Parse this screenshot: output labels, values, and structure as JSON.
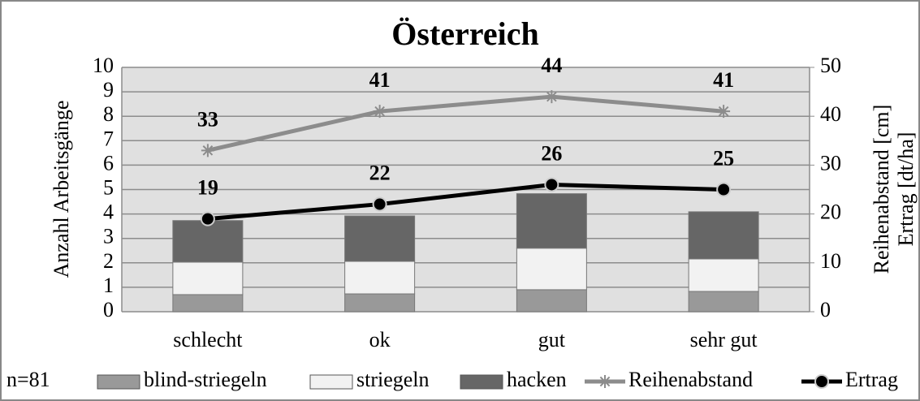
{
  "chart_data": {
    "type": "bar_line_combo",
    "title": "Österreich",
    "categories": [
      "schlecht",
      "ok",
      "gut",
      "sehr gut"
    ],
    "ylabel": "Anzahl Arbeitsgänge",
    "y2label": [
      "Reihenabstand [cm]",
      "Ertrag [dt/ha]"
    ],
    "ylim": [
      0,
      10
    ],
    "yticks": [
      0,
      1,
      2,
      3,
      4,
      5,
      6,
      7,
      8,
      9,
      10
    ],
    "y2lim": [
      0,
      50
    ],
    "y2ticks": [
      0,
      10,
      20,
      30,
      40,
      50
    ],
    "grid": true,
    "annotation": "n=81",
    "legend": "bottom",
    "series": [
      {
        "name": "blind-striegeln",
        "color": "#999999",
        "kind": "bar",
        "values": [
          0.7,
          0.73,
          0.9,
          0.83
        ]
      },
      {
        "name": "striegeln",
        "color": "#f2f2f2",
        "kind": "bar",
        "values": [
          1.33,
          1.33,
          1.7,
          1.33
        ]
      },
      {
        "name": "hacken",
        "color": "#666666",
        "kind": "bar",
        "values": [
          1.7,
          1.86,
          2.23,
          1.93
        ]
      },
      {
        "name": "Reihenabstand",
        "color": "#8c8c8c",
        "kind": "line",
        "marker": "star",
        "axis": "y2",
        "values": [
          33,
          41,
          44,
          41
        ]
      },
      {
        "name": "Ertrag",
        "color": "#000000",
        "kind": "line",
        "marker": "circle",
        "axis": "y2",
        "values": [
          19,
          22,
          26,
          25
        ]
      }
    ]
  }
}
